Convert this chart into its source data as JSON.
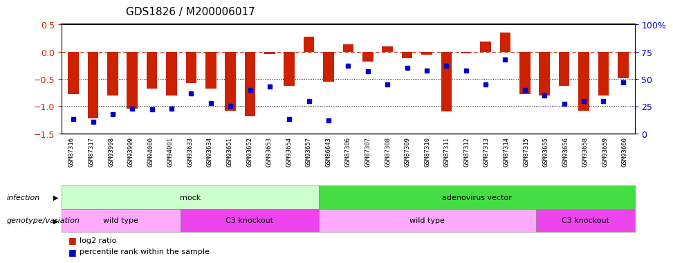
{
  "title": "GDS1826 / M200006017",
  "samples": [
    "GSM87316",
    "GSM87317",
    "GSM93998",
    "GSM93999",
    "GSM94000",
    "GSM94001",
    "GSM93633",
    "GSM93634",
    "GSM93651",
    "GSM93652",
    "GSM93653",
    "GSM93654",
    "GSM93657",
    "GSM86643",
    "GSM87306",
    "GSM87307",
    "GSM87308",
    "GSM87309",
    "GSM87310",
    "GSM87311",
    "GSM87312",
    "GSM87313",
    "GSM87314",
    "GSM87315",
    "GSM93655",
    "GSM93656",
    "GSM93658",
    "GSM93659",
    "GSM93660"
  ],
  "log2_ratio": [
    -0.78,
    -1.22,
    -0.8,
    -1.05,
    -0.68,
    -0.8,
    -0.58,
    -0.68,
    -1.08,
    -1.18,
    -0.04,
    -0.62,
    0.28,
    -0.55,
    0.14,
    -0.18,
    0.1,
    -0.12,
    -0.05,
    -1.1,
    -0.03,
    0.19,
    0.35,
    -0.78,
    -0.8,
    -0.62,
    -1.08,
    -0.8,
    -0.48
  ],
  "percentile": [
    13,
    11,
    18,
    23,
    22,
    23,
    37,
    28,
    25,
    40,
    43,
    13,
    30,
    12,
    62,
    57,
    45,
    60,
    58,
    62,
    58,
    45,
    68,
    40,
    35,
    27,
    30,
    30,
    47
  ],
  "bar_color": "#cc2200",
  "dot_color": "#0000cc",
  "zero_line_color": "#cc2200",
  "grid_color": "#000000",
  "bg_color": "#ffffff",
  "ylim_left": [
    -1.5,
    0.5
  ],
  "ylim_right": [
    0,
    100
  ],
  "yticks_left": [
    -1.5,
    -1.0,
    -0.5,
    0.0,
    0.5
  ],
  "yticks_right": [
    0,
    25,
    50,
    75,
    100
  ],
  "infection_regions": [
    {
      "label": "mock",
      "start": 0,
      "end": 13,
      "color": "#ccffcc"
    },
    {
      "label": "adenovirus vector",
      "start": 13,
      "end": 29,
      "color": "#44dd44"
    }
  ],
  "genotype_regions": [
    {
      "label": "wild type",
      "start": 0,
      "end": 6,
      "color": "#ffaaff"
    },
    {
      "label": "C3 knockout",
      "start": 6,
      "end": 13,
      "color": "#ee44ee"
    },
    {
      "label": "wild type",
      "start": 13,
      "end": 24,
      "color": "#ffaaff"
    },
    {
      "label": "C3 knockout",
      "start": 24,
      "end": 29,
      "color": "#ee44ee"
    }
  ],
  "bar_width": 0.55,
  "tick_label_fontsize": 6.5,
  "ann_label_fontsize": 8,
  "legend_fontsize": 8
}
